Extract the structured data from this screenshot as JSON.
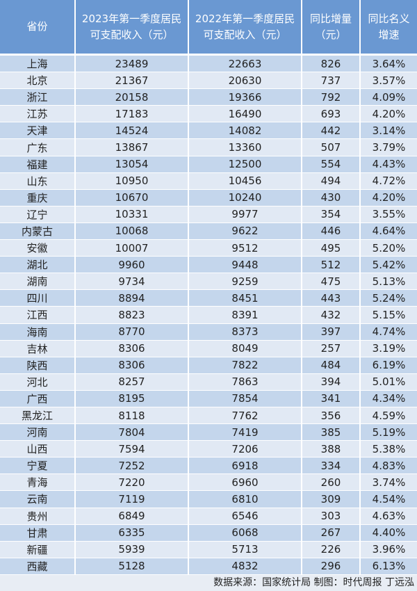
{
  "header": [
    "省份",
    "2023年第一季度居民\n可支配收入（元）",
    "2022年第一季度居民\n可支配收入（元）",
    "同比增量\n（元）",
    "同比名义\n增速"
  ],
  "rows": [
    [
      "上海",
      "23489",
      "22663",
      "826",
      "3.64%"
    ],
    [
      "北京",
      "21367",
      "20630",
      "737",
      "3.57%"
    ],
    [
      "浙江",
      "20158",
      "19366",
      "792",
      "4.09%"
    ],
    [
      "江苏",
      "17183",
      "16490",
      "693",
      "4.20%"
    ],
    [
      "天津",
      "14524",
      "14082",
      "442",
      "3.14%"
    ],
    [
      "广东",
      "13867",
      "13360",
      "507",
      "3.79%"
    ],
    [
      "福建",
      "13054",
      "12500",
      "554",
      "4.43%"
    ],
    [
      "山东",
      "10950",
      "10456",
      "494",
      "4.72%"
    ],
    [
      "重庆",
      "10670",
      "10240",
      "430",
      "4.20%"
    ],
    [
      "辽宁",
      "10331",
      "9977",
      "354",
      "3.55%"
    ],
    [
      "内蒙古",
      "10068",
      "9622",
      "446",
      "4.64%"
    ],
    [
      "安徽",
      "10007",
      "9512",
      "495",
      "5.20%"
    ],
    [
      "湖北",
      "9960",
      "9448",
      "512",
      "5.42%"
    ],
    [
      "湖南",
      "9734",
      "9259",
      "475",
      "5.13%"
    ],
    [
      "四川",
      "8894",
      "8451",
      "443",
      "5.24%"
    ],
    [
      "江西",
      "8823",
      "8391",
      "432",
      "5.15%"
    ],
    [
      "海南",
      "8770",
      "8373",
      "397",
      "4.74%"
    ],
    [
      "吉林",
      "8306",
      "8049",
      "257",
      "3.19%"
    ],
    [
      "陕西",
      "8306",
      "7822",
      "484",
      "6.19%"
    ],
    [
      "河北",
      "8257",
      "7863",
      "394",
      "5.01%"
    ],
    [
      "广西",
      "8195",
      "7854",
      "341",
      "4.34%"
    ],
    [
      "黑龙江",
      "8118",
      "7762",
      "356",
      "4.59%"
    ],
    [
      "河南",
      "7804",
      "7419",
      "385",
      "5.19%"
    ],
    [
      "山西",
      "7594",
      "7206",
      "388",
      "5.38%"
    ],
    [
      "宁夏",
      "7252",
      "6918",
      "334",
      "4.83%"
    ],
    [
      "青海",
      "7220",
      "6960",
      "260",
      "3.74%"
    ],
    [
      "云南",
      "7119",
      "6810",
      "309",
      "4.54%"
    ],
    [
      "贵州",
      "6849",
      "6546",
      "303",
      "4.63%"
    ],
    [
      "甘肃",
      "6335",
      "6068",
      "267",
      "4.40%"
    ],
    [
      "新疆",
      "5939",
      "5713",
      "226",
      "3.96%"
    ],
    [
      "西藏",
      "5128",
      "4832",
      "296",
      "6.13%"
    ]
  ],
  "footer": "数据来源：国家统计局 制图：时代周报 丁远泓",
  "colors": {
    "header": "#6a98d2",
    "row_dark": "#c4d6ec",
    "row_light": "#e1e9f4"
  }
}
